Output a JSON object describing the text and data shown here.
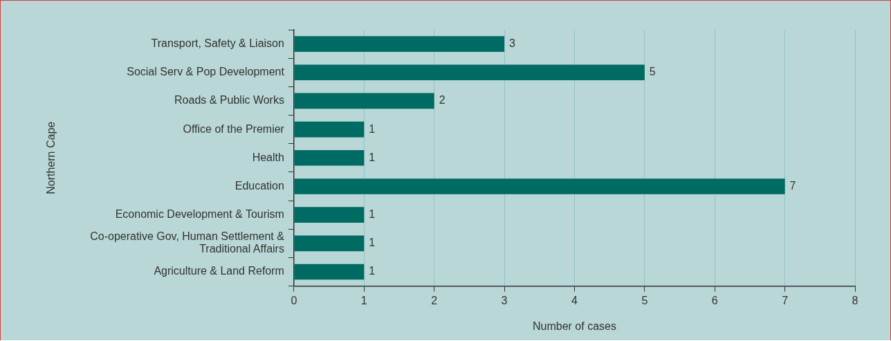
{
  "chart_data": {
    "type": "bar",
    "orientation": "horizontal",
    "xlabel": "Number of cases",
    "ylabel": "Northern Cape",
    "categories": [
      "Transport, Safety & Liaison",
      "Social Serv & Pop Development",
      "Roads & Public Works",
      "Office of the Premier",
      "Health",
      "Education",
      "Economic Development & Tourism",
      "Co-operative Gov, Human Settlement & Traditional Affairs",
      "Agriculture & Land Reform"
    ],
    "values": [
      3,
      5,
      2,
      1,
      1,
      7,
      1,
      1,
      1
    ],
    "color": "#006b63",
    "xlim": [
      0,
      8
    ],
    "xticks": [
      0,
      1,
      2,
      3,
      4,
      5,
      6,
      7,
      8
    ],
    "grid": "x",
    "legend": false,
    "data_labels": true
  }
}
